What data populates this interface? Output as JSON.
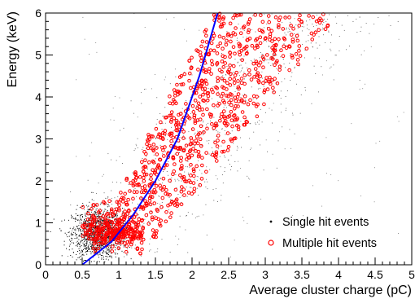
{
  "chart_data": {
    "type": "scatter",
    "xlabel": "Average cluster charge (pC)",
    "ylabel": "Energy (keV)",
    "xlim": [
      0,
      5
    ],
    "ylim": [
      0,
      6
    ],
    "xticks": [
      "0",
      "0.5",
      "1",
      "1.5",
      "2",
      "2.5",
      "3",
      "3.5",
      "4",
      "4.5",
      "5"
    ],
    "yticks": [
      "0",
      "1",
      "2",
      "3",
      "4",
      "5",
      "6"
    ],
    "grid": false,
    "legend_position": "bottom-right",
    "series": [
      {
        "name": "Single hit events",
        "marker": "dot",
        "color": "#000000",
        "cluster": {
          "x": 0.7,
          "y": 0.75
        },
        "x_range": [
          0.3,
          4.9
        ],
        "y_range": [
          0.1,
          6
        ]
      },
      {
        "name": "Multiple hit events",
        "marker": "open-circle",
        "color": "#ff0000",
        "band_x_at_y0": [
          0.5,
          1.2
        ],
        "band_x_at_y6": [
          2.3,
          4.0
        ],
        "x_range": [
          0.3,
          4.1
        ],
        "y_range": [
          0.1,
          6
        ]
      }
    ],
    "curves": [
      {
        "color": "#0000ff",
        "points": [
          [
            0.5,
            0
          ],
          [
            0.9,
            0.55
          ],
          [
            1.2,
            1.2
          ],
          [
            1.5,
            2.0
          ],
          [
            1.8,
            3.0
          ],
          [
            2.1,
            4.5
          ],
          [
            2.35,
            6.0
          ]
        ]
      }
    ]
  }
}
